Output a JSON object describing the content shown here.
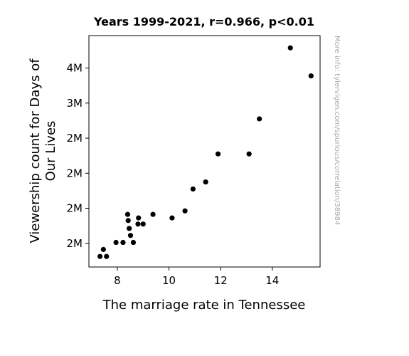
{
  "chart_data": {
    "type": "scatter",
    "title": "Years 1999-2021, r=0.966, p<0.01",
    "xlabel": "The marriage rate in Tennessee",
    "ylabel_lines": [
      "Viewership count for Days of",
      "Our Lives"
    ],
    "watermark": "More info: tylervigen.com/spurious/correlation/38984",
    "xlim": [
      6.9,
      15.85
    ],
    "ylim": [
      1.13,
      3.77
    ],
    "x_ticks": [
      8,
      10,
      12,
      14
    ],
    "x_tick_labels": [
      "8",
      "10",
      "12",
      "14"
    ],
    "y_ticks": [
      1.5,
      1.9,
      2.3,
      2.7,
      3.1,
      3.5
    ],
    "y_tick_labels": [
      "2M",
      "2M",
      "2M",
      "2M",
      "3M",
      "4M",
      "4M"
    ],
    "y_ticks_all": [
      1.4,
      1.8,
      2.2,
      2.6,
      3.0,
      3.4,
      3.8
    ],
    "grid": false,
    "marker_color": "#000000",
    "points": [
      {
        "x": 7.33,
        "y": 1.25
      },
      {
        "x": 7.46,
        "y": 1.33
      },
      {
        "x": 7.58,
        "y": 1.25
      },
      {
        "x": 7.95,
        "y": 1.41
      },
      {
        "x": 8.22,
        "y": 1.41
      },
      {
        "x": 8.4,
        "y": 1.73
      },
      {
        "x": 8.42,
        "y": 1.66
      },
      {
        "x": 8.46,
        "y": 1.57
      },
      {
        "x": 8.51,
        "y": 1.49
      },
      {
        "x": 8.62,
        "y": 1.41
      },
      {
        "x": 8.8,
        "y": 1.62
      },
      {
        "x": 8.82,
        "y": 1.69
      },
      {
        "x": 9.0,
        "y": 1.62
      },
      {
        "x": 9.38,
        "y": 1.73
      },
      {
        "x": 10.12,
        "y": 1.69
      },
      {
        "x": 10.62,
        "y": 1.77
      },
      {
        "x": 10.93,
        "y": 2.02
      },
      {
        "x": 11.42,
        "y": 2.1
      },
      {
        "x": 11.9,
        "y": 2.42
      },
      {
        "x": 13.1,
        "y": 2.42
      },
      {
        "x": 13.5,
        "y": 2.82
      },
      {
        "x": 14.7,
        "y": 3.63
      },
      {
        "x": 15.5,
        "y": 3.31
      }
    ]
  }
}
